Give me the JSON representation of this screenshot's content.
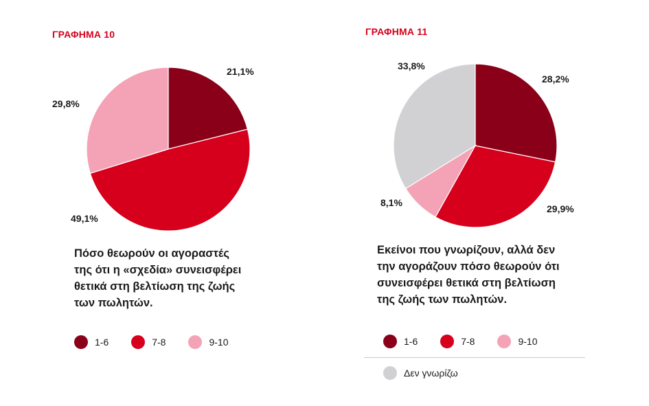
{
  "colors": {
    "title": "#d6001c",
    "c_1_6": "#8a0018",
    "c_7_8": "#d6001c",
    "c_9_10": "#f4a3b7",
    "c_dk": "#d1d0d3"
  },
  "chart_data": [
    {
      "type": "pie",
      "title": "ΓΡΑΦΗΜΑ 10",
      "caption_lines": [
        "Πόσο θεωρούν οι αγοραστές",
        "της ότι η «σχεδία» συνεισφέρει",
        "θετικά στη βελτίωση της ζωής",
        "των πωλητών."
      ],
      "slices": [
        {
          "label": "1-6",
          "value": 21.1,
          "display": "21,1%",
          "color": "#8a0018"
        },
        {
          "label": "7-8",
          "value": 49.1,
          "display": "49,1%",
          "color": "#d6001c"
        },
        {
          "label": "9-10",
          "value": 29.8,
          "display": "29,8%",
          "color": "#f4a3b7"
        }
      ],
      "legend": [
        {
          "label": "1-6",
          "color": "#8a0018"
        },
        {
          "label": "7-8",
          "color": "#d6001c"
        },
        {
          "label": "9-10",
          "color": "#f4a3b7"
        }
      ]
    },
    {
      "type": "pie",
      "title": "ΓΡΑΦΗΜΑ 11",
      "caption_lines": [
        "Εκείνοι που γνωρίζουν, αλλά δεν",
        "την αγοράζουν πόσο θεωρούν ότι",
        "συνεισφέρει θετικά στη βελτίωση",
        "της ζωής των πωλητών."
      ],
      "slices": [
        {
          "label": "1-6",
          "value": 28.2,
          "display": "28,2%",
          "color": "#8a0018"
        },
        {
          "label": "7-8",
          "value": 29.9,
          "display": "29,9%",
          "color": "#d6001c"
        },
        {
          "label": "9-10",
          "value": 8.1,
          "display": "8,1%",
          "color": "#f4a3b7"
        },
        {
          "label": "Δεν γνωρίζω",
          "value": 33.8,
          "display": "33,8%",
          "color": "#d1d0d3"
        }
      ],
      "legend": [
        {
          "label": "1-6",
          "color": "#8a0018"
        },
        {
          "label": "7-8",
          "color": "#d6001c"
        },
        {
          "label": "9-10",
          "color": "#f4a3b7"
        }
      ],
      "legend_extra": {
        "label": "Δεν γνωρίζω",
        "color": "#d1d0d3"
      }
    }
  ]
}
